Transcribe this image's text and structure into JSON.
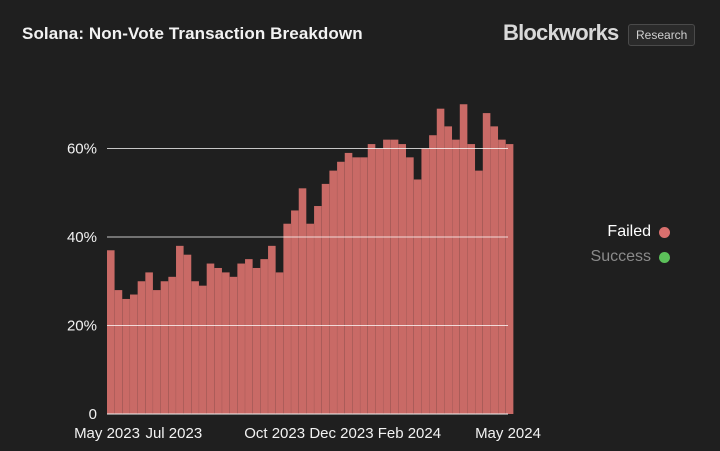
{
  "header": {
    "title": "Solana: Non-Vote Transaction Breakdown",
    "brand": "Blockworks",
    "badge": "Research"
  },
  "colors": {
    "background": "#1f1f1f",
    "failed": "#d9706e",
    "failed_fill": "#c96a66",
    "success": "#5cc05a",
    "success_text": "#8a8a8a"
  },
  "chart_data": {
    "type": "bar",
    "title": "Solana: Non-Vote Transaction Breakdown",
    "xlabel": "",
    "ylabel": "",
    "ylim": [
      0,
      80
    ],
    "yticks": [
      0,
      20,
      40,
      60
    ],
    "ytick_labels": [
      "0",
      "20%",
      "40%",
      "60%"
    ],
    "x_range": [
      "2023-05-01",
      "2024-05-01"
    ],
    "xtick_labels": [
      "May 2023",
      "Jul 2023",
      "Oct 2023",
      "Dec 2023",
      "Feb 2024",
      "May 2024"
    ],
    "xtick_dates": [
      "2023-05-01",
      "2023-07-01",
      "2023-10-01",
      "2023-12-01",
      "2024-02-01",
      "2024-05-01"
    ],
    "stacked": true,
    "grid": true,
    "legend_position": "right",
    "series": [
      {
        "name": "Failed",
        "color": "#d9706e",
        "x": [
          "2023-05-01",
          "2023-05-08",
          "2023-05-15",
          "2023-05-22",
          "2023-05-29",
          "2023-06-05",
          "2023-06-12",
          "2023-06-19",
          "2023-06-26",
          "2023-07-03",
          "2023-07-10",
          "2023-07-17",
          "2023-07-24",
          "2023-07-31",
          "2023-08-07",
          "2023-08-14",
          "2023-08-21",
          "2023-08-28",
          "2023-09-04",
          "2023-09-11",
          "2023-09-18",
          "2023-09-25",
          "2023-10-02",
          "2023-10-09",
          "2023-10-16",
          "2023-10-23",
          "2023-10-30",
          "2023-11-06",
          "2023-11-13",
          "2023-11-20",
          "2023-11-27",
          "2023-12-04",
          "2023-12-11",
          "2023-12-18",
          "2023-12-25",
          "2024-01-01",
          "2024-01-08",
          "2024-01-15",
          "2024-01-22",
          "2024-01-29",
          "2024-02-05",
          "2024-02-12",
          "2024-02-19",
          "2024-02-26",
          "2024-03-04",
          "2024-03-11",
          "2024-03-18",
          "2024-03-25",
          "2024-04-01",
          "2024-04-08",
          "2024-04-15",
          "2024-04-22",
          "2024-04-29"
        ],
        "values": [
          37,
          28,
          26,
          27,
          30,
          32,
          28,
          30,
          31,
          38,
          36,
          30,
          29,
          34,
          33,
          32,
          31,
          34,
          35,
          33,
          35,
          38,
          32,
          43,
          46,
          51,
          43,
          47,
          52,
          55,
          57,
          59,
          58,
          58,
          61,
          60,
          62,
          62,
          61,
          58,
          53,
          60,
          63,
          69,
          65,
          62,
          70,
          61,
          55,
          68,
          65,
          62,
          61
        ]
      },
      {
        "name": "Success",
        "color": "#5cc05a",
        "values": []
      }
    ]
  },
  "legend": {
    "failed_label": "Failed",
    "success_label": "Success"
  }
}
